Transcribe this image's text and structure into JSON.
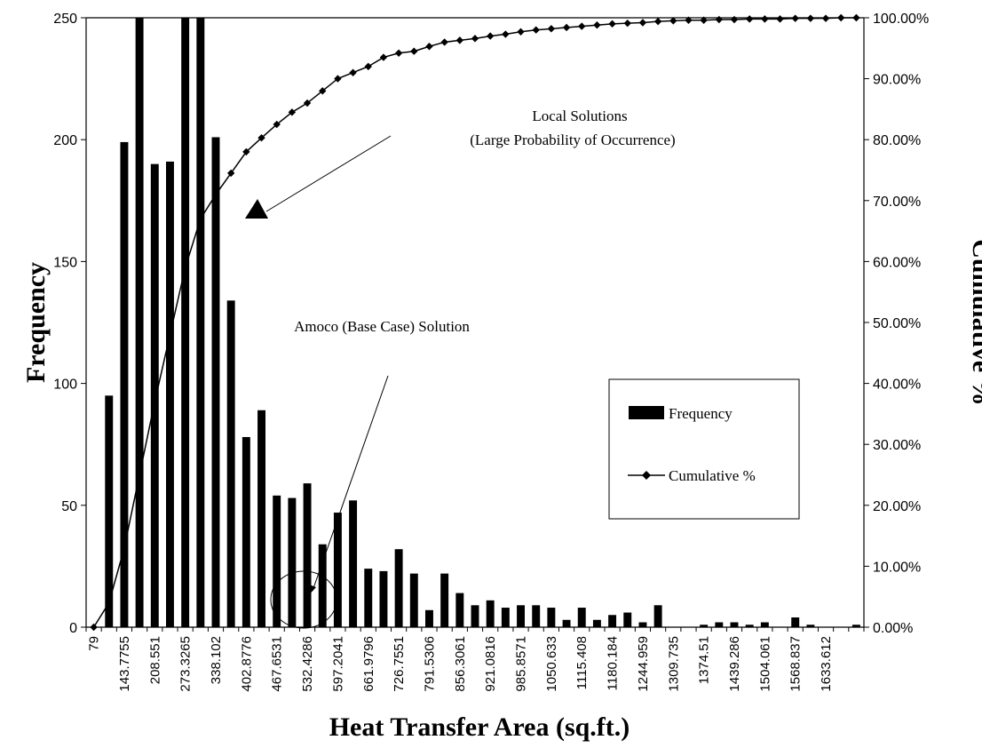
{
  "chart_data": {
    "type": "bar",
    "xlabel": "Heat Transfer Area (sq.ft.)",
    "ylabel_left": "Frequency",
    "ylabel_right": "Cumulative %",
    "ylim_left": [
      0,
      250
    ],
    "ylim_right": [
      0,
      100
    ],
    "y_ticks_left": [
      "0",
      "50",
      "100",
      "150",
      "200",
      "250"
    ],
    "y_ticks_right": [
      "0.00%",
      "10.00%",
      "20.00%",
      "30.00%",
      "40.00%",
      "50.00%",
      "60.00%",
      "70.00%",
      "80.00%",
      "90.00%",
      "100.00%"
    ],
    "x_tick_labels": [
      "79",
      "143.7755",
      "208.551",
      "273.3265",
      "338.102",
      "402.8776",
      "467.6531",
      "532.4286",
      "597.2041",
      "661.9796",
      "726.7551",
      "791.5306",
      "856.3061",
      "921.0816",
      "985.8571",
      "1050.633",
      "1115.408",
      "1180.184",
      "1244.959",
      "1309.735",
      "1374.51",
      "1439.286",
      "1504.061",
      "1568.837",
      "1633.612"
    ],
    "bin_count": 51,
    "series": [
      {
        "name": "Frequency",
        "type": "bar",
        "values": [
          0,
          95,
          199,
          250,
          190,
          191,
          250,
          250,
          201,
          134,
          78,
          89,
          54,
          53,
          59,
          34,
          47,
          52,
          24,
          23,
          32,
          22,
          7,
          22,
          14,
          9,
          11,
          8,
          9,
          9,
          8,
          3,
          8,
          3,
          5,
          6,
          2,
          9,
          0,
          0,
          1,
          2,
          2,
          1,
          2,
          0,
          4,
          1,
          0,
          0,
          1
        ]
      },
      {
        "name": "Cumulative %",
        "type": "line",
        "values": [
          0,
          4,
          13,
          25,
          37,
          48,
          59,
          67,
          71,
          74.5,
          78,
          80.3,
          82.5,
          84.5,
          86,
          88,
          90,
          91,
          92,
          93.5,
          94.2,
          94.5,
          95.3,
          96,
          96.3,
          96.6,
          97,
          97.3,
          97.7,
          98,
          98.2,
          98.4,
          98.6,
          98.8,
          99,
          99.1,
          99.2,
          99.4,
          99.5,
          99.6,
          99.6,
          99.7,
          99.7,
          99.8,
          99.8,
          99.8,
          99.9,
          99.9,
          99.9,
          100,
          100
        ]
      }
    ],
    "legend": {
      "placement": "right",
      "entries": [
        "Frequency",
        "Cumulative %"
      ]
    },
    "annotations": {
      "local_line1": "Local Solutions",
      "local_line2": "(Large Probability of Occurrence)",
      "amoco": "Amoco (Base Case) Solution"
    },
    "grid": false
  }
}
